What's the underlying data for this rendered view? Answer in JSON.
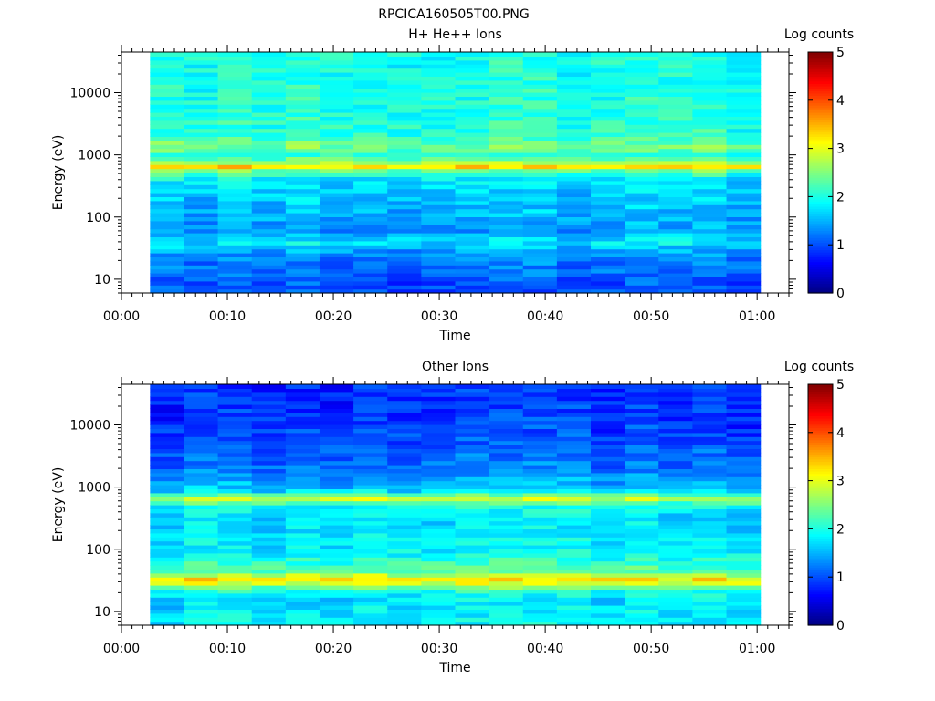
{
  "figure_title": "RPCICA160505T00.PNG",
  "chart_data": [
    {
      "type": "heatmap",
      "title": "H+ He++ Ions",
      "xlabel": "Time",
      "ylabel": "Energy (eV)",
      "x_ticks": [
        "00:00",
        "00:10",
        "00:20",
        "00:30",
        "00:40",
        "00:50",
        "01:00"
      ],
      "x_range_min": [
        0,
        63
      ],
      "data_x_range_min": [
        2.7,
        60.3
      ],
      "time_columns": 18,
      "y_scale": "log",
      "y_range": [
        6,
        45000
      ],
      "y_ticks": [
        10,
        100,
        1000,
        10000
      ],
      "colorbar": {
        "label": "Log counts",
        "range": [
          0,
          5
        ],
        "ticks": [
          0,
          1,
          2,
          3,
          4,
          5
        ],
        "colormap": "jet"
      },
      "energy_profile_log_counts": [
        {
          "energy_ev": 8,
          "value": 1.0
        },
        {
          "energy_ev": 15,
          "value": 1.2
        },
        {
          "energy_ev": 25,
          "value": 1.3
        },
        {
          "energy_ev": 40,
          "value": 1.8
        },
        {
          "energy_ev": 60,
          "value": 1.4
        },
        {
          "energy_ev": 100,
          "value": 1.5
        },
        {
          "energy_ev": 200,
          "value": 1.6
        },
        {
          "energy_ev": 400,
          "value": 1.8
        },
        {
          "energy_ev": 550,
          "value": 2.3
        },
        {
          "energy_ev": 650,
          "value": 3.3
        },
        {
          "energy_ev": 800,
          "value": 2.5
        },
        {
          "energy_ev": 1000,
          "value": 2.1
        },
        {
          "energy_ev": 1400,
          "value": 2.5
        },
        {
          "energy_ev": 2000,
          "value": 2.1
        },
        {
          "energy_ev": 10000,
          "value": 2.0
        },
        {
          "energy_ev": 40000,
          "value": 2.0
        }
      ]
    },
    {
      "type": "heatmap",
      "title": "Other Ions",
      "xlabel": "Time",
      "ylabel": "Energy (eV)",
      "x_ticks": [
        "00:00",
        "00:10",
        "00:20",
        "00:30",
        "00:40",
        "00:50",
        "01:00"
      ],
      "x_range_min": [
        0,
        63
      ],
      "data_x_range_min": [
        2.7,
        60.3
      ],
      "time_columns": 18,
      "y_scale": "log",
      "y_range": [
        6,
        45000
      ],
      "y_ticks": [
        10,
        100,
        1000,
        10000
      ],
      "colorbar": {
        "label": "Log counts",
        "range": [
          0,
          5
        ],
        "ticks": [
          0,
          1,
          2,
          3,
          4,
          5
        ],
        "colormap": "jet"
      },
      "energy_profile_log_counts": [
        {
          "energy_ev": 8,
          "value": 1.8
        },
        {
          "energy_ev": 15,
          "value": 1.7
        },
        {
          "energy_ev": 22,
          "value": 2.0
        },
        {
          "energy_ev": 32,
          "value": 3.3
        },
        {
          "energy_ev": 45,
          "value": 2.3
        },
        {
          "energy_ev": 100,
          "value": 1.8
        },
        {
          "energy_ev": 300,
          "value": 1.7
        },
        {
          "energy_ev": 500,
          "value": 1.9
        },
        {
          "energy_ev": 650,
          "value": 2.8
        },
        {
          "energy_ev": 900,
          "value": 1.6
        },
        {
          "energy_ev": 2000,
          "value": 1.2
        },
        {
          "energy_ev": 10000,
          "value": 0.9
        },
        {
          "energy_ev": 40000,
          "value": 0.8
        }
      ]
    }
  ]
}
